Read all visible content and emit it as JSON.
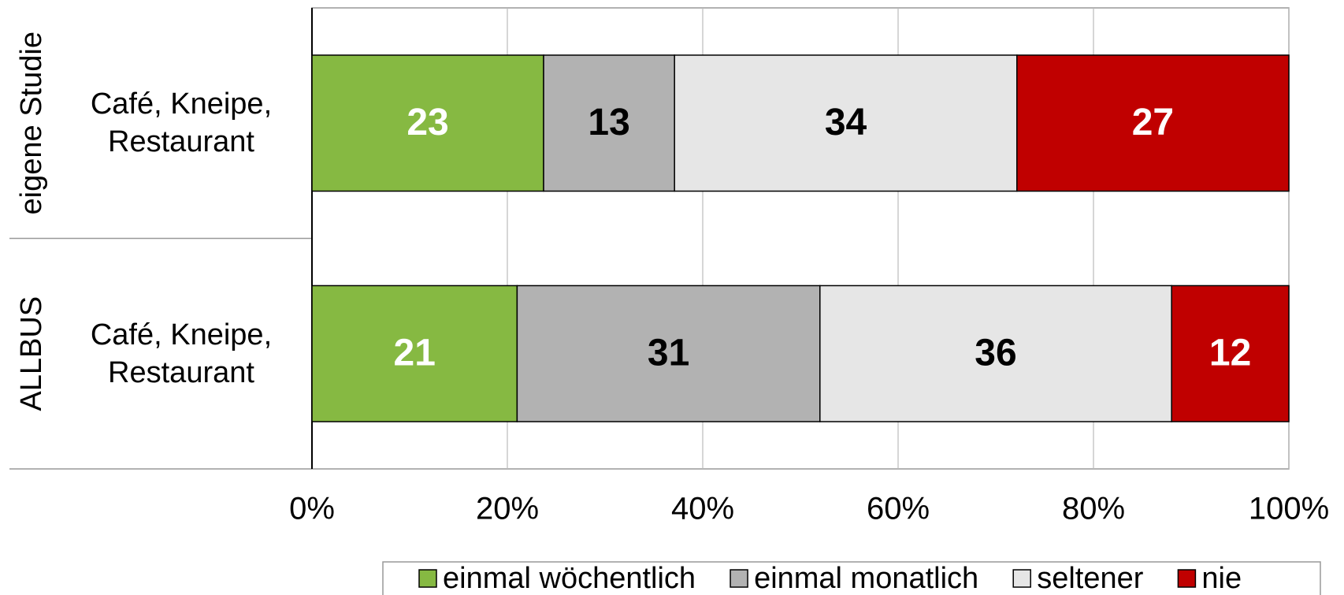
{
  "chart_data": {
    "type": "stacked-bar-horizontal",
    "stacking": "percent",
    "groups": [
      "eigene Studie",
      "ALLBUS"
    ],
    "categories": [
      "Café, Kneipe, Restaurant",
      "Café, Kneipe, Restaurant"
    ],
    "series": [
      {
        "name": "einmal wöchentlich",
        "color": "#86b942",
        "label_color": "#ffffff",
        "values": [
          23,
          21
        ]
      },
      {
        "name": "einmal monatlich",
        "color": "#b2b2b2",
        "label_color": "#000000",
        "values": [
          13,
          31
        ]
      },
      {
        "name": "seltener",
        "color": "#e6e6e6",
        "label_color": "#000000",
        "values": [
          34,
          36
        ]
      },
      {
        "name": "nie",
        "color": "#c00000",
        "label_color": "#ffffff",
        "values": [
          27,
          12
        ]
      }
    ],
    "xlim": [
      0,
      100
    ],
    "xticks": [
      {
        "value": 0,
        "label": "0%"
      },
      {
        "value": 20,
        "label": "20%"
      },
      {
        "value": 40,
        "label": "40%"
      },
      {
        "value": 60,
        "label": "60%"
      },
      {
        "value": 80,
        "label": "80%"
      },
      {
        "value": 100,
        "label": "100%"
      }
    ],
    "grid": true,
    "legend": "bottom"
  }
}
